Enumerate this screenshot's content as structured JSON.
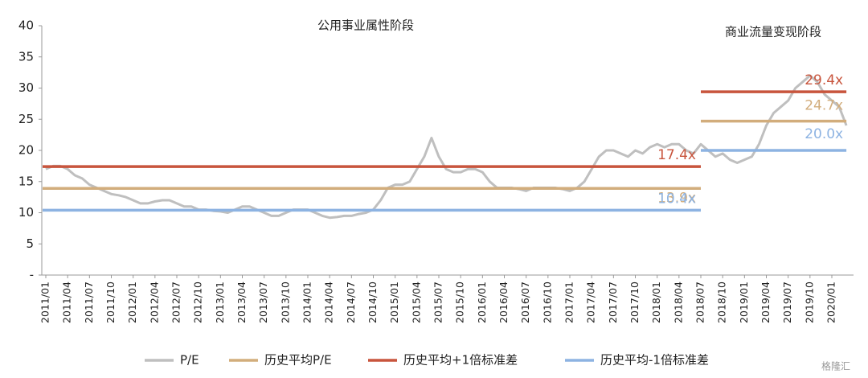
{
  "chart_data": {
    "type": "line",
    "annotations": [
      "公用事业属性阶段",
      "商业流量变现阶段"
    ],
    "watermark": "格隆汇",
    "x": [
      "2011/01",
      "2011/02",
      "2011/03",
      "2011/04",
      "2011/05",
      "2011/06",
      "2011/07",
      "2011/08",
      "2011/09",
      "2011/10",
      "2011/11",
      "2011/12",
      "2012/01",
      "2012/02",
      "2012/03",
      "2012/04",
      "2012/05",
      "2012/06",
      "2012/07",
      "2012/08",
      "2012/09",
      "2012/10",
      "2012/11",
      "2012/12",
      "2013/01",
      "2013/02",
      "2013/03",
      "2013/04",
      "2013/05",
      "2013/06",
      "2013/07",
      "2013/08",
      "2013/09",
      "2013/10",
      "2013/11",
      "2013/12",
      "2014/01",
      "2014/02",
      "2014/03",
      "2014/04",
      "2014/05",
      "2014/06",
      "2014/07",
      "2014/08",
      "2014/09",
      "2014/10",
      "2014/11",
      "2014/12",
      "2015/01",
      "2015/02",
      "2015/03",
      "2015/04",
      "2015/05",
      "2015/06",
      "2015/07",
      "2015/08",
      "2015/09",
      "2015/10",
      "2015/11",
      "2015/12",
      "2016/01",
      "2016/02",
      "2016/03",
      "2016/04",
      "2016/05",
      "2016/06",
      "2016/07",
      "2016/08",
      "2016/09",
      "2016/10",
      "2016/11",
      "2016/12",
      "2017/01",
      "2017/02",
      "2017/03",
      "2017/04",
      "2017/05",
      "2017/06",
      "2017/07",
      "2017/08",
      "2017/09",
      "2017/10",
      "2017/11",
      "2017/12",
      "2018/01",
      "2018/02",
      "2018/03",
      "2018/04",
      "2018/05",
      "2018/06",
      "2018/07",
      "2018/08",
      "2018/09",
      "2018/10",
      "2018/11",
      "2018/12",
      "2019/01",
      "2019/02",
      "2019/03",
      "2019/04",
      "2019/05",
      "2019/06",
      "2019/07",
      "2019/08",
      "2019/09",
      "2019/10",
      "2019/11",
      "2019/12",
      "2020/01",
      "2020/02",
      "2020/03"
    ],
    "xticks": [
      "2011/01",
      "2011/04",
      "2011/07",
      "2011/10",
      "2012/01",
      "2012/04",
      "2012/07",
      "2012/10",
      "2013/01",
      "2013/04",
      "2013/07",
      "2013/10",
      "2014/01",
      "2014/04",
      "2014/07",
      "2014/10",
      "2015/01",
      "2015/04",
      "2015/07",
      "2015/10",
      "2016/01",
      "2016/04",
      "2016/07",
      "2016/10",
      "2017/01",
      "2017/04",
      "2017/07",
      "2017/10",
      "2018/01",
      "2018/04",
      "2018/07",
      "2018/10",
      "2019/01",
      "2019/04",
      "2019/07",
      "2019/10",
      "2020/01"
    ],
    "ylim": [
      0,
      40
    ],
    "yticks": [
      {
        "value": 0,
        "label": "-"
      },
      5,
      10,
      15,
      20,
      25,
      30,
      35,
      40
    ],
    "series": [
      {
        "name": "P/E",
        "color": "#bfbfbf",
        "values": [
          17,
          17.5,
          17.5,
          17,
          16,
          15.5,
          14.5,
          14,
          13.5,
          13,
          12.8,
          12.5,
          12,
          11.5,
          11.5,
          11.8,
          12,
          12,
          11.5,
          11,
          11,
          10.5,
          10.5,
          10.3,
          10.2,
          10,
          10.5,
          11,
          11,
          10.5,
          10,
          9.5,
          9.5,
          10,
          10.5,
          10.5,
          10.5,
          10,
          9.5,
          9.2,
          9.3,
          9.5,
          9.5,
          9.8,
          10,
          10.5,
          12,
          14,
          14.5,
          14.5,
          15,
          17,
          19,
          22,
          19,
          17,
          16.5,
          16.5,
          17,
          17,
          16.5,
          15,
          14,
          14,
          14,
          13.8,
          13.5,
          14,
          14,
          14,
          14,
          13.8,
          13.5,
          14,
          15,
          17,
          19,
          20,
          20,
          19.5,
          19,
          20,
          19.5,
          20.5,
          21,
          20.5,
          21,
          21,
          20,
          19.5,
          21,
          20,
          19,
          19.5,
          18.5,
          18,
          18.5,
          19,
          21,
          24,
          26,
          27,
          28,
          30,
          31,
          32,
          31,
          29,
          28,
          27,
          24
        ]
      },
      {
        "name": "历史平均P/E",
        "color": "#d2ad7c",
        "segments": [
          {
            "start": "2011/01",
            "end": "2018/07",
            "value": 13.9,
            "label": "13.9x"
          },
          {
            "start": "2018/07",
            "end": "2020/03",
            "value": 24.7,
            "label": "24.7x"
          }
        ]
      },
      {
        "name": "历史平均+1倍标准差",
        "color": "#c8553d",
        "segments": [
          {
            "start": "2011/01",
            "end": "2018/07",
            "value": 17.4,
            "label": "17.4x"
          },
          {
            "start": "2018/07",
            "end": "2020/03",
            "value": 29.4,
            "label": "29.4x"
          }
        ]
      },
      {
        "name": "历史平均-1倍标准差",
        "color": "#8db3e2",
        "segments": [
          {
            "start": "2011/01",
            "end": "2018/07",
            "value": 10.4,
            "label": "10.4x"
          },
          {
            "start": "2018/07",
            "end": "2020/03",
            "value": 20.0,
            "label": "20.0x"
          }
        ]
      }
    ]
  }
}
